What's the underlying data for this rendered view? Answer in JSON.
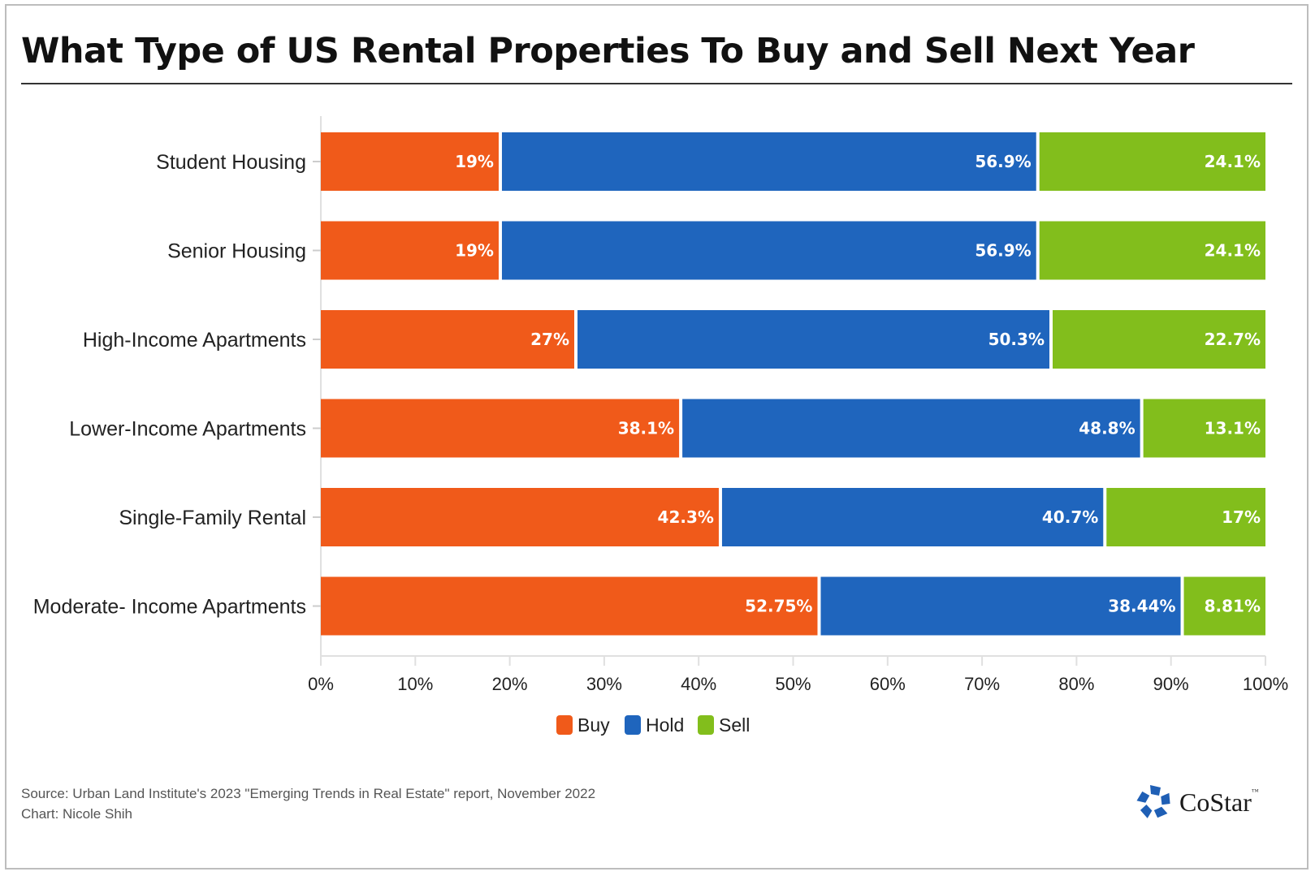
{
  "chart_data": {
    "type": "bar",
    "orientation": "horizontal",
    "stacked": "percent",
    "title": "What Type of US Rental Properties To Buy and Sell Next Year",
    "categories": [
      "Student Housing",
      "Senior Housing",
      "High-Income Apartments",
      "Lower-Income Apartments",
      "Single-Family Rental",
      "Moderate- Income Apartments"
    ],
    "series": [
      {
        "name": "Buy",
        "color": "#f05a1a",
        "values": [
          19,
          19,
          27,
          38.1,
          42.3,
          52.75
        ],
        "labels": [
          "19%",
          "19%",
          "27%",
          "38.1%",
          "42.3%",
          "52.75%"
        ]
      },
      {
        "name": "Hold",
        "color": "#1f65bd",
        "values": [
          56.9,
          56.9,
          50.3,
          48.8,
          40.7,
          38.44
        ],
        "labels": [
          "56.9%",
          "56.9%",
          "50.3%",
          "48.8%",
          "40.7%",
          "38.44%"
        ]
      },
      {
        "name": "Sell",
        "color": "#82be1c",
        "values": [
          24.1,
          24.1,
          22.7,
          13.1,
          17,
          8.81
        ],
        "labels": [
          "24.1%",
          "24.1%",
          "22.7%",
          "13.1%",
          "17%",
          "8.81%"
        ]
      }
    ],
    "xlim": [
      0,
      100
    ],
    "xticks": [
      "0%",
      "10%",
      "20%",
      "30%",
      "40%",
      "50%",
      "60%",
      "70%",
      "80%",
      "90%",
      "100%"
    ],
    "xlabel": "",
    "ylabel": "",
    "grid": false,
    "legend_position": "bottom-center"
  },
  "footer": {
    "source": "Source: Urban Land Institute's 2023 \"Emerging Trends in Real Estate\" report, November 2022",
    "credit": "Chart: Nicole Shih"
  },
  "brand": {
    "name": "CoStar",
    "trademark": "™",
    "color": "#1f5fb5"
  }
}
